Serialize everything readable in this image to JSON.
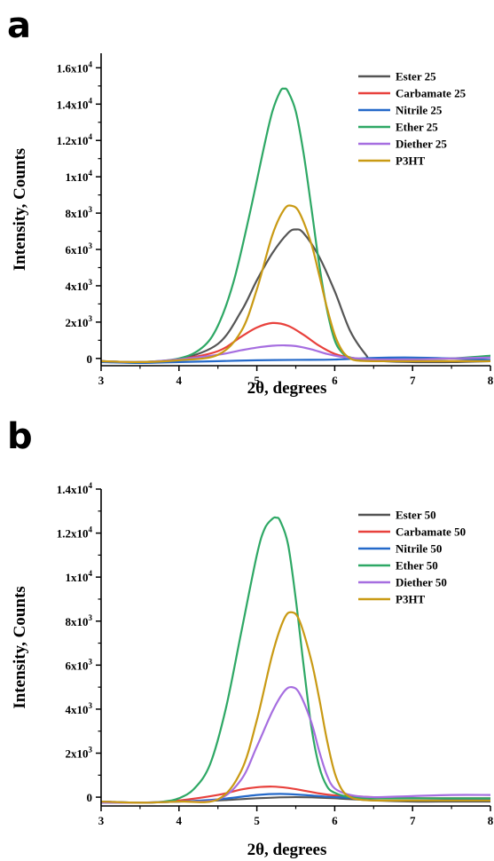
{
  "chart_data": [
    {
      "panel": "a",
      "type": "line",
      "xlabel": "2θ, degrees",
      "ylabel": "Intensity, Counts",
      "xlim": [
        3,
        8
      ],
      "ylim": [
        -400,
        16800
      ],
      "xticks": [
        3,
        4,
        5,
        6,
        7,
        8
      ],
      "yticks": [
        {
          "value": 0,
          "base": "0",
          "exp": ""
        },
        {
          "value": 2000,
          "base": "2x10",
          "exp": "3"
        },
        {
          "value": 4000,
          "base": "4x10",
          "exp": "3"
        },
        {
          "value": 6000,
          "base": "6x10",
          "exp": "3"
        },
        {
          "value": 8000,
          "base": "8x10",
          "exp": "3"
        },
        {
          "value": 10000,
          "base": "1x10",
          "exp": "4"
        },
        {
          "value": 12000,
          "base": "1.2x10",
          "exp": "4"
        },
        {
          "value": 14000,
          "base": "1.4x10",
          "exp": "4"
        },
        {
          "value": 16000,
          "base": "1.6x10",
          "exp": "4"
        }
      ],
      "legend_position": "top-right",
      "series": [
        {
          "name": "Ester 25",
          "color": "#555555",
          "x": [
            3.0,
            3.5,
            4.0,
            4.5,
            4.8,
            5.0,
            5.2,
            5.4,
            5.5,
            5.6,
            5.8,
            6.0,
            6.2,
            6.4,
            6.5,
            7.0,
            7.5,
            8.0
          ],
          "y": [
            -150,
            -200,
            -50,
            800,
            2600,
            4300,
            5800,
            6900,
            7100,
            6900,
            5600,
            3700,
            1500,
            200,
            -100,
            -200,
            -200,
            -150
          ]
        },
        {
          "name": "Carbamate 25",
          "color": "#e8413c",
          "x": [
            3.0,
            3.5,
            4.0,
            4.5,
            4.8,
            5.0,
            5.2,
            5.4,
            5.6,
            5.8,
            6.0,
            6.2,
            6.5,
            7.0,
            7.5,
            8.0
          ],
          "y": [
            -150,
            -200,
            -50,
            400,
            1200,
            1700,
            1950,
            1800,
            1300,
            700,
            250,
            50,
            -100,
            -150,
            -150,
            -150
          ]
        },
        {
          "name": "Nitrile 25",
          "color": "#2469c9",
          "x": [
            3.0,
            3.5,
            4.0,
            4.5,
            5.0,
            5.5,
            6.0,
            6.5,
            7.0,
            7.5,
            8.0
          ],
          "y": [
            -200,
            -250,
            -200,
            -150,
            -100,
            -80,
            -60,
            30,
            50,
            0,
            -80
          ]
        },
        {
          "name": "Ether 25",
          "color": "#2ea865",
          "x": [
            3.0,
            3.5,
            4.0,
            4.3,
            4.5,
            4.7,
            4.9,
            5.1,
            5.2,
            5.3,
            5.35,
            5.4,
            5.5,
            5.6,
            5.7,
            5.8,
            5.9,
            6.0,
            6.1,
            6.2,
            6.5,
            7.0,
            7.5,
            8.0
          ],
          "y": [
            -150,
            -200,
            0,
            600,
            1800,
            4200,
            7800,
            11800,
            13600,
            14700,
            14850,
            14700,
            13600,
            11300,
            8300,
            5200,
            2700,
            1000,
            300,
            50,
            -100,
            -50,
            0,
            150
          ]
        },
        {
          "name": "Diether 25",
          "color": "#a66ee0",
          "x": [
            3.0,
            3.5,
            4.0,
            4.5,
            4.8,
            5.0,
            5.2,
            5.35,
            5.5,
            5.7,
            5.9,
            6.1,
            6.3,
            6.5,
            7.0,
            7.5,
            8.0
          ],
          "y": [
            -150,
            -200,
            -50,
            200,
            450,
            600,
            700,
            720,
            680,
            500,
            250,
            80,
            0,
            -50,
            -50,
            0,
            50
          ]
        },
        {
          "name": "P3HT",
          "color": "#c99a14",
          "x": [
            3.0,
            3.5,
            4.0,
            4.5,
            4.8,
            5.0,
            5.2,
            5.35,
            5.45,
            5.55,
            5.7,
            5.8,
            5.9,
            6.0,
            6.1,
            6.2,
            6.3,
            6.5,
            7.0,
            7.5,
            8.0
          ],
          "y": [
            -150,
            -200,
            -100,
            200,
            1500,
            3800,
            6800,
            8200,
            8400,
            8000,
            6300,
            4600,
            2800,
            1300,
            400,
            0,
            -120,
            -150,
            -150,
            -150,
            -150
          ]
        }
      ]
    },
    {
      "panel": "b",
      "type": "line",
      "xlabel": "2θ, degrees",
      "ylabel": "Intensity, Counts",
      "xlim": [
        3,
        8
      ],
      "ylim": [
        -400,
        14000
      ],
      "xticks": [
        3,
        4,
        5,
        6,
        7,
        8
      ],
      "yticks": [
        {
          "value": 0,
          "base": "0",
          "exp": ""
        },
        {
          "value": 2000,
          "base": "2x10",
          "exp": "3"
        },
        {
          "value": 4000,
          "base": "4x10",
          "exp": "3"
        },
        {
          "value": 6000,
          "base": "6x10",
          "exp": "3"
        },
        {
          "value": 8000,
          "base": "8x10",
          "exp": "3"
        },
        {
          "value": 10000,
          "base": "1x10",
          "exp": "4"
        },
        {
          "value": 12000,
          "base": "1.2x10",
          "exp": "4"
        },
        {
          "value": 14000,
          "base": "1.4x10",
          "exp": "4"
        }
      ],
      "legend_position": "top-right",
      "series": [
        {
          "name": "Ester 50",
          "color": "#555555",
          "x": [
            3.0,
            3.5,
            4.0,
            4.5,
            5.0,
            5.5,
            6.0,
            6.5,
            7.0,
            7.5,
            8.0
          ],
          "y": [
            -200,
            -250,
            -200,
            -150,
            -50,
            0,
            -50,
            -150,
            -200,
            -200,
            -200
          ]
        },
        {
          "name": "Carbamate 50",
          "color": "#e8413c",
          "x": [
            3.0,
            3.5,
            4.0,
            4.5,
            4.8,
            5.0,
            5.2,
            5.4,
            5.6,
            5.8,
            6.0,
            6.2,
            6.5,
            7.0,
            7.5,
            8.0
          ],
          "y": [
            -200,
            -250,
            -150,
            100,
            350,
            450,
            480,
            420,
            300,
            170,
            80,
            50,
            0,
            -50,
            -50,
            -50
          ]
        },
        {
          "name": "Nitrile 50",
          "color": "#2469c9",
          "x": [
            3.0,
            3.5,
            4.0,
            4.5,
            5.0,
            5.3,
            5.6,
            6.0,
            6.5,
            7.0,
            7.5,
            8.0
          ],
          "y": [
            -200,
            -250,
            -200,
            -100,
            100,
            150,
            100,
            0,
            -50,
            -50,
            -80,
            -100
          ]
        },
        {
          "name": "Ether 50",
          "color": "#2ea865",
          "x": [
            3.0,
            3.5,
            3.8,
            4.0,
            4.2,
            4.4,
            4.6,
            4.8,
            5.0,
            5.1,
            5.2,
            5.25,
            5.3,
            5.4,
            5.5,
            5.6,
            5.7,
            5.8,
            5.9,
            6.0,
            6.2,
            6.5,
            7.0,
            7.5,
            8.0
          ],
          "y": [
            -250,
            -250,
            -200,
            -50,
            400,
            1500,
            4000,
            7500,
            11000,
            12200,
            12650,
            12700,
            12550,
            11500,
            9000,
            6000,
            3200,
            1400,
            500,
            200,
            0,
            -50,
            -50,
            -50,
            -50
          ]
        },
        {
          "name": "Diether 50",
          "color": "#a66ee0",
          "x": [
            3.0,
            3.5,
            4.0,
            4.5,
            4.8,
            5.0,
            5.2,
            5.35,
            5.45,
            5.55,
            5.7,
            5.8,
            5.9,
            6.0,
            6.2,
            6.5,
            7.0,
            7.5,
            8.0
          ],
          "y": [
            -250,
            -250,
            -200,
            -100,
            800,
            2300,
            3900,
            4800,
            5000,
            4700,
            3400,
            2100,
            1000,
            400,
            100,
            0,
            50,
            100,
            100
          ]
        },
        {
          "name": "P3HT",
          "color": "#c99a14",
          "x": [
            3.0,
            3.5,
            4.0,
            4.5,
            4.8,
            5.0,
            5.2,
            5.35,
            5.45,
            5.55,
            5.7,
            5.8,
            5.9,
            6.0,
            6.1,
            6.2,
            6.3,
            6.5,
            7.0,
            7.5,
            8.0
          ],
          "y": [
            -200,
            -250,
            -200,
            -100,
            1200,
            3500,
            6500,
            8100,
            8400,
            8000,
            6200,
            4500,
            2600,
            1100,
            300,
            0,
            -100,
            -150,
            -150,
            -150,
            -150
          ]
        }
      ]
    }
  ]
}
